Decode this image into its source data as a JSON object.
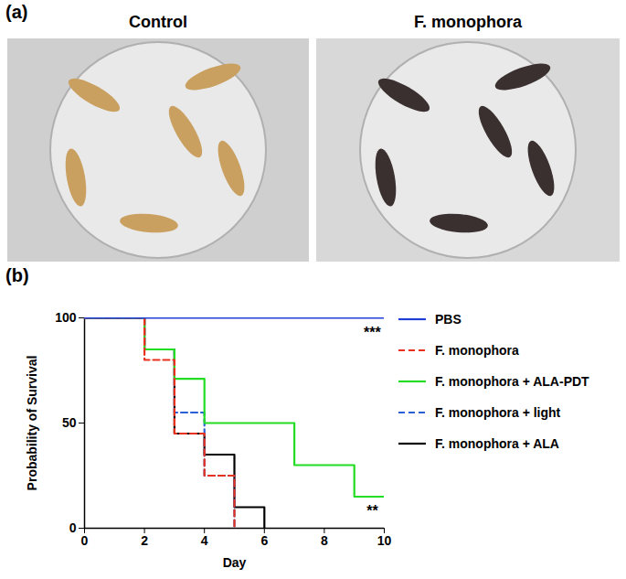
{
  "photo_panel": {
    "label": "(a)",
    "images": [
      "Control",
      "F. monophora"
    ]
  },
  "chart_data": {
    "type": "line",
    "panel_label": "(b)",
    "x_label": "Day",
    "y_label": "Probability of Survival",
    "x": [
      0,
      1,
      2,
      3,
      4,
      5,
      6,
      7,
      8,
      9,
      10
    ],
    "xlim": [
      0,
      10
    ],
    "xticks": [
      0,
      2,
      4,
      6,
      8,
      10
    ],
    "ylim": [
      0,
      100
    ],
    "yticks": [
      0,
      50,
      100
    ],
    "grid": false,
    "series": [
      {
        "name": "PBS",
        "color": "#1f3fd6",
        "line_style": "solid",
        "values": [
          100,
          100,
          100,
          100,
          100,
          100,
          100,
          100,
          100,
          100,
          100
        ]
      },
      {
        "name": "F. monophora",
        "color": "#e8321e",
        "line_style": "dashed",
        "values": [
          100,
          100,
          80,
          45,
          25,
          0,
          null,
          null,
          null,
          null,
          null
        ]
      },
      {
        "name": "F. monophora + ALA-PDT",
        "color": "#22dd22",
        "line_style": "solid",
        "values": [
          100,
          100,
          85,
          71,
          50,
          50,
          50,
          30,
          30,
          15,
          15
        ]
      },
      {
        "name": "F. monophora + light",
        "color": "#2a5fd6",
        "line_style": "dashed",
        "values": [
          100,
          100,
          85,
          55,
          25,
          0,
          null,
          null,
          null,
          null,
          null
        ]
      },
      {
        "name": "F. monophora + ALA",
        "color": "#000000",
        "line_style": "solid",
        "values": [
          100,
          100,
          85,
          45,
          35,
          10,
          0,
          null,
          null,
          null,
          null
        ]
      }
    ],
    "annotations": [
      {
        "text": "***",
        "x": 9.6,
        "y": 93
      },
      {
        "text": "**",
        "x": 9.6,
        "y": 8
      }
    ]
  }
}
